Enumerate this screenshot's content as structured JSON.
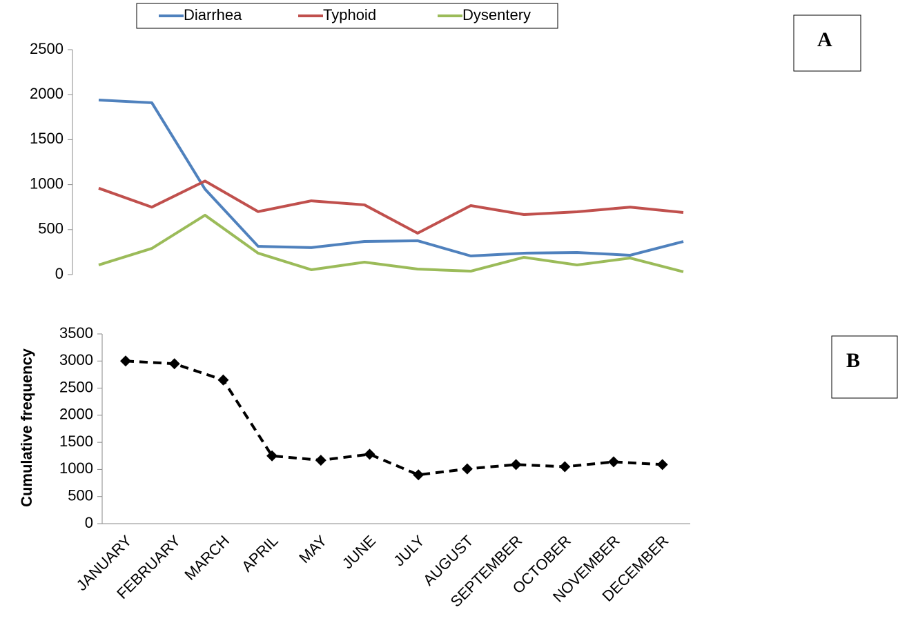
{
  "chart_data": [
    {
      "type": "line",
      "label": "A",
      "series": [
        {
          "name": "Diarrhea",
          "color": "#4f81bd",
          "values": [
            1940,
            1910,
            950,
            314,
            300,
            368,
            376,
            207,
            238,
            245,
            215,
            368
          ]
        },
        {
          "name": "Typhoid",
          "color": "#c0504d",
          "values": [
            960,
            750,
            1040,
            700,
            820,
            775,
            460,
            767,
            667,
            698,
            750,
            690
          ]
        },
        {
          "name": "Dysentery",
          "color": "#9bbb59",
          "values": [
            107,
            291,
            660,
            238,
            54,
            138,
            61,
            38,
            192,
            107,
            184,
            31
          ]
        }
      ],
      "ylim": [
        0,
        2500
      ],
      "yticks": [
        0,
        500,
        1000,
        1500,
        2000,
        2500
      ],
      "legend": "top"
    },
    {
      "type": "line",
      "label": "B",
      "y_label": "Cumulative frequency",
      "categories": [
        "JANUARY",
        "FEBRUARY",
        "MARCH",
        "APRIL",
        "MAY",
        "JUNE",
        "JULY",
        "AUGUST",
        "SEPTEMBER",
        "OCTOBER",
        "NOVEMBER",
        "DECEMBER"
      ],
      "series": [
        {
          "color": "#000000",
          "values": [
            3000,
            2950,
            2650,
            1250,
            1170,
            1280,
            900,
            1010,
            1090,
            1050,
            1140,
            1090
          ],
          "line_style": "dashed",
          "marker": "diamond"
        }
      ],
      "ylim": [
        0,
        3500
      ],
      "yticks": [
        0,
        500,
        1000,
        1500,
        2000,
        2500,
        3000,
        3500
      ]
    }
  ]
}
